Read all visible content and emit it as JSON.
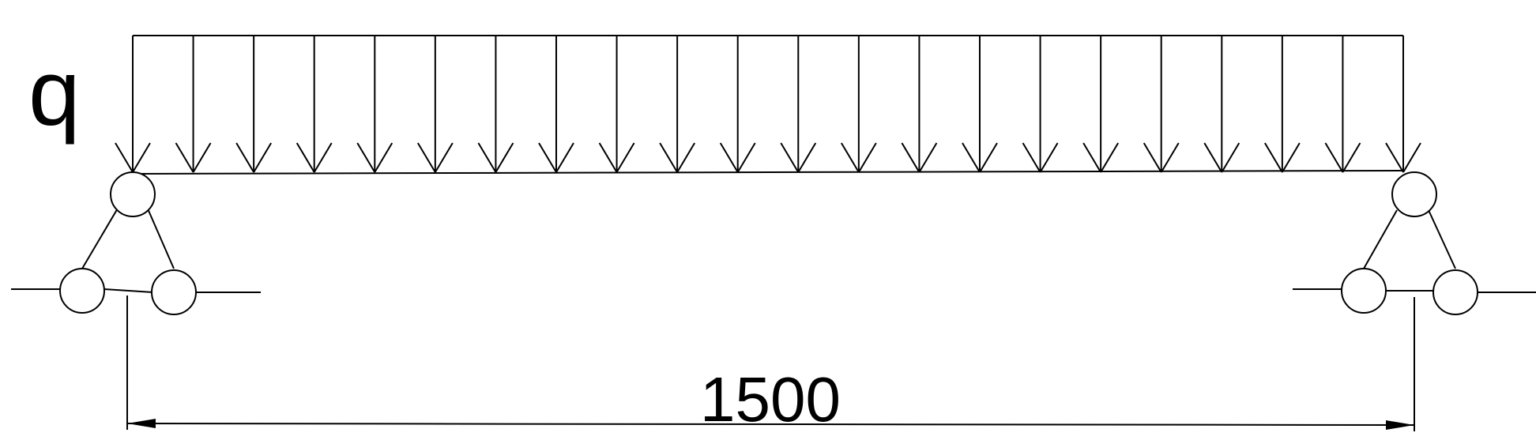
{
  "load": {
    "label": "q",
    "arrow_count": 22
  },
  "dimension": {
    "label": "1500"
  },
  "colors": {
    "ink": "#000000",
    "background": "#ffffff"
  }
}
